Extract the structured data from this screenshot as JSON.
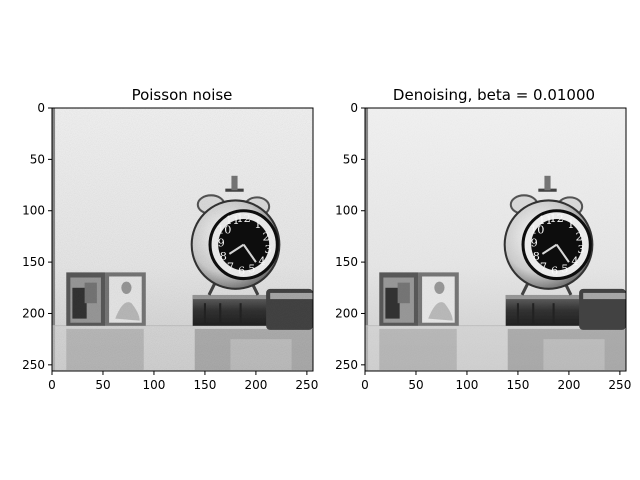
{
  "panels": [
    {
      "title": "Poisson noise",
      "x_ticks": [
        "0",
        "50",
        "100",
        "150",
        "200",
        "250"
      ],
      "y_ticks": [
        "0",
        "50",
        "100",
        "150",
        "200",
        "250"
      ],
      "image": "grayscale photo of alarm clock, photo frames and books with Poisson noise",
      "colormap": "gray"
    },
    {
      "title": "Denoising, beta = 0.01000",
      "x_ticks": [
        "0",
        "50",
        "100",
        "150",
        "200",
        "250"
      ],
      "y_ticks": [
        "0",
        "50",
        "100",
        "150",
        "200",
        "250"
      ],
      "image": "denoised grayscale photo of alarm clock, photo frames and books",
      "colormap": "gray"
    }
  ],
  "axis_range": {
    "x": [
      0,
      256
    ],
    "y": [
      0,
      256
    ]
  }
}
